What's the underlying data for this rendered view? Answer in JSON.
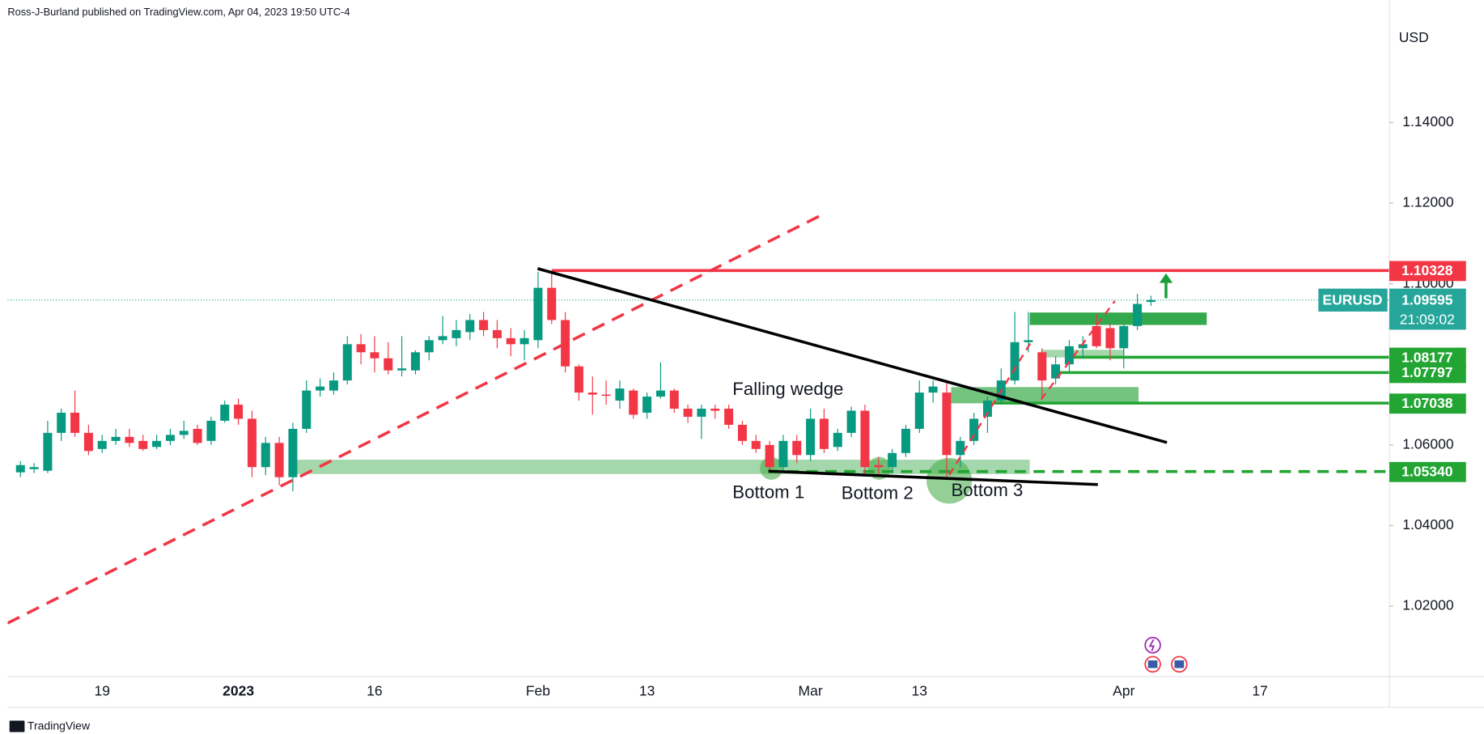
{
  "chart_data": {
    "type": "candlestick",
    "source": "Ross-J-Burland published on TradingView.com, Apr 04, 2023 19:50 UTC-4",
    "currency": "USD",
    "symbol": "EURUSD",
    "countdown": "21:09:02",
    "footer": "TradingView",
    "up_color": "#089981",
    "down_color": "#f23645",
    "categories": [
      null,
      null,
      null,
      null,
      null,
      null,
      "19",
      null,
      null,
      null,
      null,
      null,
      null,
      null,
      null,
      null,
      "2023",
      null,
      null,
      null,
      null,
      null,
      null,
      null,
      null,
      null,
      "16",
      null,
      null,
      null,
      null,
      null,
      null,
      null,
      null,
      null,
      null,
      null,
      "Feb",
      null,
      null,
      null,
      null,
      null,
      null,
      null,
      "13",
      null,
      null,
      null,
      null,
      null,
      null,
      null,
      null,
      null,
      null,
      null,
      "Mar",
      null,
      null,
      null,
      null,
      null,
      null,
      null,
      "13",
      null,
      null,
      null,
      null,
      null,
      null,
      null,
      null,
      null,
      null,
      null,
      null,
      null,
      null,
      "Apr",
      null,
      null,
      null,
      null,
      null,
      null,
      null,
      null,
      null,
      "17",
      null,
      null,
      null,
      null,
      null,
      null,
      null,
      null,
      null
    ],
    "open": [
      1.0532,
      1.054,
      1.0536,
      1.063,
      1.068,
      1.063,
      1.059,
      1.061,
      1.062,
      1.061,
      1.0595,
      1.061,
      1.0625,
      1.064,
      1.061,
      1.066,
      1.07,
      1.0665,
      1.0545,
      1.0605,
      1.052,
      1.064,
      1.0735,
      1.0735,
      1.076,
      1.085,
      1.083,
      1.0815,
      1.0785,
      1.0785,
      1.083,
      1.086,
      1.0865,
      1.088,
      1.091,
      1.0885,
      1.0865,
      1.085,
      1.086,
      1.099,
      1.091,
      1.0795,
      1.073,
      1.0725,
      1.071,
      1.0735,
      1.068,
      1.072,
      1.0735,
      1.069,
      1.067,
      1.069,
      1.069,
      1.065,
      1.061,
      1.06,
      1.0545,
      1.061,
      1.0575,
      1.0665,
      1.0595,
      1.063,
      1.0685,
      1.055,
      1.0545,
      1.058,
      1.064,
      1.073,
      1.073,
      1.0575,
      1.061,
      1.067,
      1.071,
      1.076,
      1.0855,
      1.083,
      1.0765,
      1.08,
      1.084,
      1.0895,
      1.089,
      1.084,
      1.0895,
      1.0955,
      null,
      null,
      null,
      null,
      null,
      null,
      null,
      null,
      null,
      null,
      null,
      null,
      null,
      null,
      null,
      null,
      null
    ],
    "high": [
      1.056,
      1.0555,
      1.066,
      1.069,
      1.0735,
      1.065,
      1.0625,
      1.064,
      1.064,
      1.0625,
      1.0625,
      1.064,
      1.066,
      1.065,
      1.067,
      1.071,
      1.0715,
      1.0685,
      1.062,
      1.062,
      1.0655,
      1.076,
      1.0765,
      1.078,
      1.087,
      1.0875,
      1.087,
      1.0855,
      1.087,
      1.0835,
      1.087,
      1.092,
      1.091,
      1.0925,
      1.093,
      1.091,
      1.089,
      1.0885,
      1.103,
      1.1033,
      1.093,
      1.08,
      1.077,
      1.076,
      1.076,
      1.074,
      1.073,
      1.0805,
      1.074,
      1.07,
      1.07,
      1.07,
      1.07,
      1.066,
      1.0625,
      1.061,
      1.0625,
      1.0625,
      1.069,
      1.069,
      1.064,
      1.0695,
      1.07,
      1.057,
      1.059,
      1.065,
      1.076,
      1.076,
      1.076,
      1.062,
      1.068,
      1.072,
      1.079,
      1.093,
      1.093,
      1.084,
      1.082,
      1.086,
      1.087,
      1.0925,
      1.09,
      1.09,
      1.0975,
      1.097,
      null,
      null,
      null,
      null,
      null,
      null,
      null,
      null,
      null,
      null,
      null,
      null,
      null,
      null,
      null,
      null,
      null
    ],
    "low": [
      1.052,
      1.053,
      1.053,
      1.061,
      1.062,
      1.0575,
      1.058,
      1.06,
      1.0595,
      1.0585,
      1.059,
      1.06,
      1.0615,
      1.06,
      1.06,
      1.0655,
      1.065,
      1.052,
      1.0525,
      1.05,
      1.0485,
      1.063,
      1.072,
      1.0725,
      1.075,
      1.08,
      1.078,
      1.0775,
      1.077,
      1.0775,
      1.081,
      1.085,
      1.0845,
      1.086,
      1.087,
      1.084,
      1.082,
      1.081,
      1.084,
      1.09,
      1.078,
      1.071,
      1.0675,
      1.07,
      1.069,
      1.0665,
      1.0665,
      1.0715,
      1.068,
      1.0655,
      1.0615,
      1.0665,
      1.064,
      1.06,
      1.058,
      1.0535,
      1.0535,
      1.0555,
      1.056,
      1.058,
      1.0585,
      1.062,
      1.0525,
      1.0525,
      1.053,
      1.057,
      1.063,
      1.0705,
      1.0515,
      1.0545,
      1.06,
      1.063,
      1.07,
      1.075,
      1.083,
      1.0715,
      1.075,
      1.078,
      1.0815,
      1.084,
      1.081,
      1.079,
      1.0885,
      1.0945,
      null,
      null,
      null,
      null,
      null,
      null,
      null,
      null,
      null,
      null,
      null,
      null,
      null,
      null,
      null,
      null,
      null
    ],
    "close": [
      1.055,
      1.0545,
      1.063,
      1.068,
      1.063,
      1.0585,
      1.061,
      1.062,
      1.0605,
      1.059,
      1.061,
      1.0625,
      1.0635,
      1.0605,
      1.066,
      1.07,
      1.0665,
      1.0545,
      1.0605,
      1.052,
      1.064,
      1.0735,
      1.0745,
      1.076,
      1.085,
      1.083,
      1.0815,
      1.0785,
      1.079,
      1.083,
      1.086,
      1.087,
      1.0885,
      1.091,
      1.0885,
      1.0865,
      1.085,
      1.0865,
      1.099,
      1.091,
      1.0795,
      1.073,
      1.0725,
      1.0722,
      1.074,
      1.0675,
      1.072,
      1.0735,
      1.069,
      1.067,
      1.069,
      1.0685,
      1.065,
      1.061,
      1.059,
      1.0545,
      1.061,
      1.0575,
      1.0665,
      1.059,
      1.063,
      1.0685,
      1.0545,
      1.0545,
      1.058,
      1.064,
      1.073,
      1.0745,
      1.0575,
      1.061,
      1.0665,
      1.071,
      1.076,
      1.0855,
      1.086,
      1.076,
      1.08,
      1.0845,
      1.085,
      1.0845,
      1.084,
      1.0895,
      1.095,
      1.09595,
      null,
      null,
      null,
      null,
      null,
      null,
      null,
      null,
      null,
      null,
      null,
      null,
      null,
      null,
      null,
      null,
      null
    ],
    "ylim": [
      1.0025,
      1.1652
    ],
    "yticks": [
      {
        "value": 1.02,
        "label": "1.02000"
      },
      {
        "value": 1.04,
        "label": "1.04000"
      },
      {
        "value": 1.06,
        "label": "1.06000"
      },
      {
        "value": 1.1,
        "label": "1.10000"
      },
      {
        "value": 1.12,
        "label": "1.12000"
      },
      {
        "value": 1.14,
        "label": "1.14000"
      }
    ],
    "levels": [
      {
        "value": 1.10328,
        "color": "#f23645",
        "style": "solid"
      },
      {
        "value": 1.08177,
        "color": "#22a532",
        "style": "solid"
      },
      {
        "value": 1.07797,
        "color": "#22a532",
        "style": "solid"
      },
      {
        "value": 1.07038,
        "color": "#22a532",
        "style": "solid"
      },
      {
        "value": 1.0534,
        "label": "1.05340",
        "color": "#22a532",
        "style": "dashed"
      }
    ],
    "last_color": "#26a69a",
    "annotations": [
      "Falling wedge",
      "Bottom 1",
      "Bottom 2",
      "Bottom 3"
    ]
  }
}
